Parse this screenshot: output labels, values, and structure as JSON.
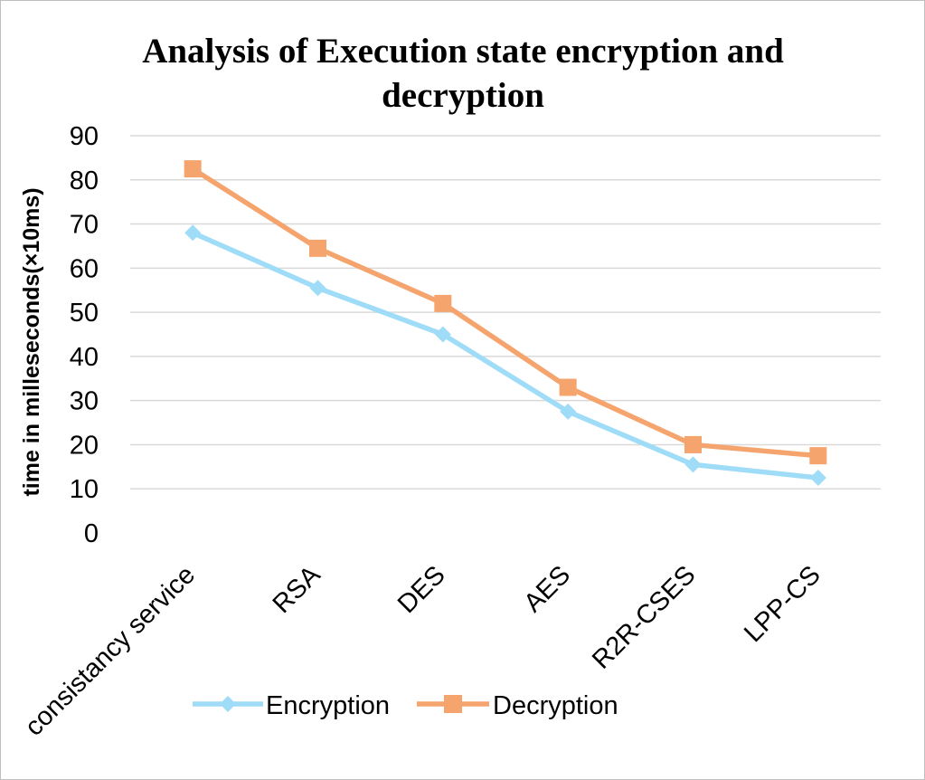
{
  "chart_data": {
    "type": "line",
    "title": "Analysis of Execution state encryption and decryption",
    "title_lines": [
      "Analysis of Execution state encryption and",
      "decryption"
    ],
    "ylabel": "time in millesecond s(×10ms)",
    "ylabel_display": "time in milleseconds(×10ms)",
    "xlabel": "",
    "categories": [
      "consistancy service",
      "RSA",
      "DES",
      "AES",
      "R2R-CSES",
      "LPP-CS"
    ],
    "ylim": [
      0,
      90
    ],
    "yticks": [
      0,
      10,
      20,
      30,
      40,
      50,
      60,
      70,
      80,
      90
    ],
    "grid": true,
    "legend_position": "bottom",
    "series": [
      {
        "name": "Encryption",
        "values": [
          68,
          55.5,
          45,
          27.5,
          15.5,
          12.5
        ],
        "color": "#9fdcf7",
        "marker": "diamond"
      },
      {
        "name": "Decryption",
        "values": [
          82.5,
          64.5,
          52,
          33,
          20,
          17.5
        ],
        "color": "#f5a46e",
        "marker": "square"
      }
    ]
  }
}
